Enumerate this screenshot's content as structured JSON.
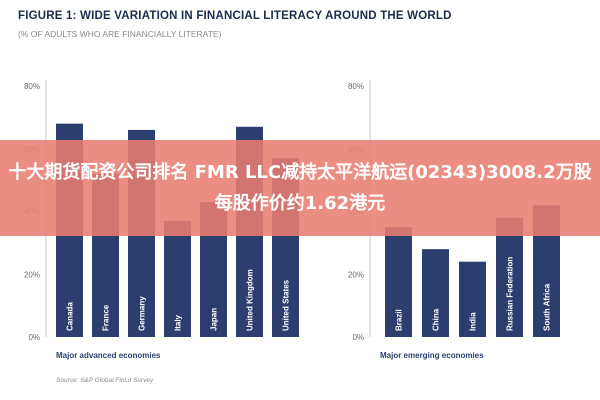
{
  "figure": {
    "title": "FIGURE 1: WIDE VARIATION IN FINANCIAL LITERACY AROUND THE WORLD",
    "subtitle": "(% OF ADULTS WHO ARE FINANCIALLY LITERATE)",
    "source": "Source: S&P Global FinLit Survey"
  },
  "overlay": {
    "text": "十大期货配资公司排名 FMR LLC减持太平洋航运(02343)3008.2万股 每股作价约1.62港元"
  },
  "colors": {
    "bar": "#2c3e6e",
    "axis": "#c8c8c8",
    "title": "#1c2c4c"
  },
  "chart_data": [
    {
      "type": "bar",
      "title": "Major advanced economies",
      "categories": [
        "Canada",
        "France",
        "Germany",
        "Italy",
        "Japan",
        "United Kingdom",
        "United States"
      ],
      "values": [
        68,
        52,
        66,
        37,
        43,
        67,
        57
      ],
      "ylim": [
        0,
        80
      ],
      "yticks": [
        "0%",
        "20%",
        "40%",
        "60%",
        "80%"
      ],
      "grid": false
    },
    {
      "type": "bar",
      "title": "Major emerging economies",
      "categories": [
        "Brazil",
        "China",
        "India",
        "Russian Federation",
        "South Africa"
      ],
      "values": [
        35,
        28,
        24,
        38,
        42
      ],
      "ylim": [
        0,
        80
      ],
      "yticks": [
        "0%",
        "20%",
        "40%",
        "60%",
        "80%"
      ],
      "grid": false
    }
  ]
}
